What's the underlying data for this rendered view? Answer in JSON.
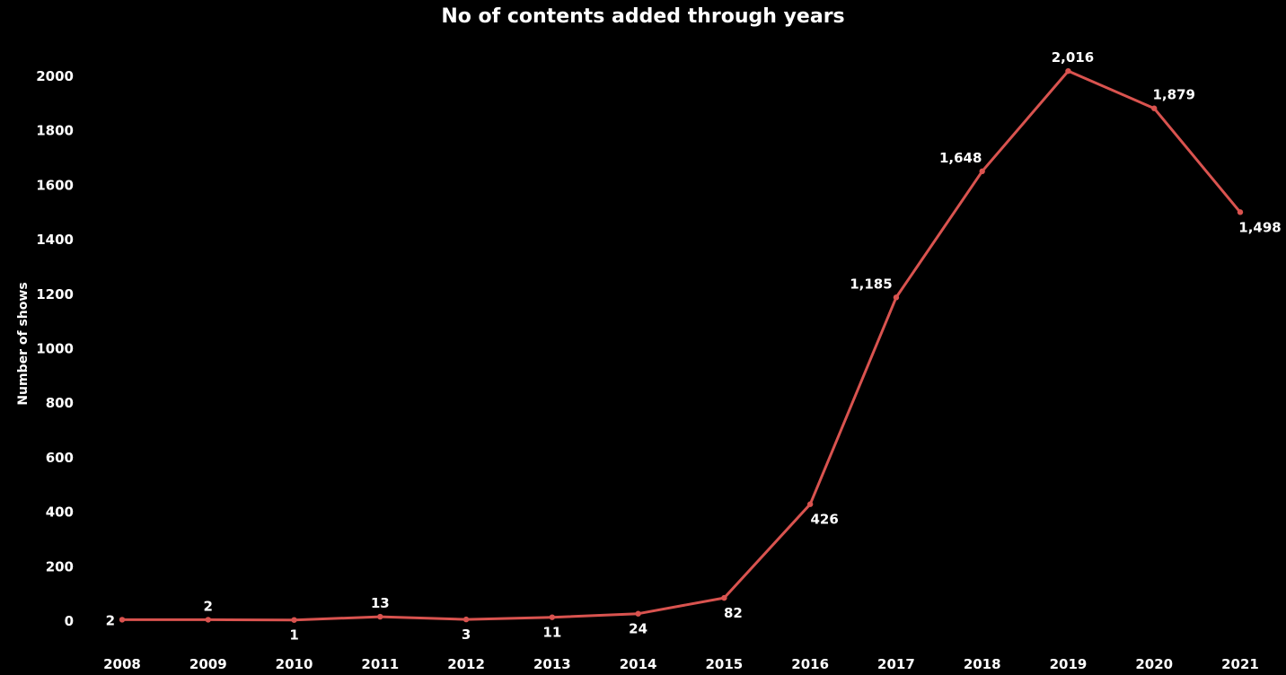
{
  "chart_data": {
    "type": "line",
    "title": "No of contents added through years",
    "xlabel": "",
    "ylabel": "Number of shows",
    "x": [
      "2008",
      "2009",
      "2010",
      "2011",
      "2012",
      "2013",
      "2014",
      "2015",
      "2016",
      "2017",
      "2018",
      "2019",
      "2020",
      "2021"
    ],
    "series": [
      {
        "values": [
          2,
          2,
          1,
          13,
          3,
          11,
          24,
          82,
          426,
          1185,
          1648,
          2016,
          1879,
          1498
        ],
        "data_labels": [
          "2",
          "2",
          "1",
          "13",
          "3",
          "11",
          "24",
          "82",
          "426",
          "1,185",
          "1,648",
          "2,016",
          "1,879",
          "1,498"
        ],
        "color": "#d9534f"
      }
    ],
    "yticks": [
      "0",
      "200",
      "400",
      "600",
      "800",
      "1000",
      "1200",
      "1400",
      "1600",
      "1800",
      "2000"
    ],
    "ylim": [
      0,
      2000
    ],
    "grid": false,
    "background": "#000000",
    "text_color": "#ffffff"
  }
}
